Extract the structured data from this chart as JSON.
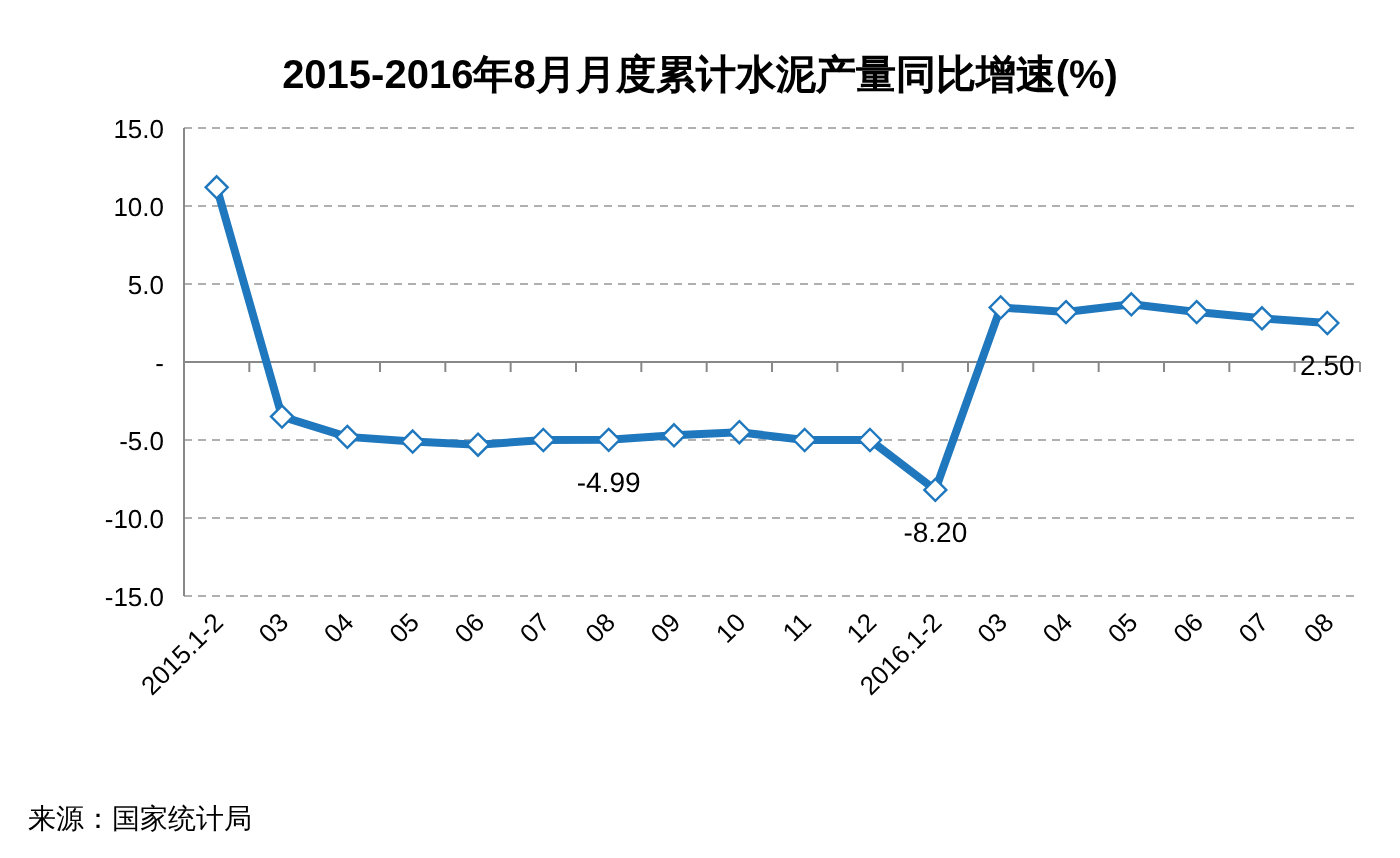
{
  "chart_data": {
    "type": "line",
    "title": "2015-2016年8月月度累计水泥产量同比增速(%)",
    "categories": [
      "2015.1-2",
      "03",
      "04",
      "05",
      "06",
      "07",
      "08",
      "09",
      "10",
      "11",
      "12",
      "2016.1-2",
      "03",
      "04",
      "05",
      "06",
      "07",
      "08"
    ],
    "series": [
      {
        "color": "#1f77bd",
        "values": [
          11.2,
          -3.5,
          -4.8,
          -5.1,
          -5.3,
          -5.0,
          -4.99,
          -4.7,
          -4.5,
          -5.0,
          -5.0,
          -8.2,
          3.5,
          3.2,
          3.7,
          3.2,
          2.8,
          2.5
        ],
        "value_labels": [
          null,
          null,
          null,
          null,
          null,
          null,
          "-4.99",
          null,
          null,
          null,
          null,
          "-8.20",
          null,
          null,
          null,
          null,
          null,
          "2.50"
        ]
      }
    ],
    "ylim": [
      -15,
      15
    ],
    "yticks": [
      {
        "value": -15,
        "label": "-15.0"
      },
      {
        "value": -10,
        "label": "-10.0"
      },
      {
        "value": -5,
        "label": "-5.0"
      },
      {
        "value": 0,
        "label": "-"
      },
      {
        "value": 5,
        "label": "5.0"
      },
      {
        "value": 10,
        "label": "10.0"
      },
      {
        "value": 15,
        "label": "15.0"
      }
    ],
    "grid": "y",
    "marker": "diamond",
    "line_style": "solid",
    "annotations": [
      "来源：国家统计局"
    ]
  }
}
